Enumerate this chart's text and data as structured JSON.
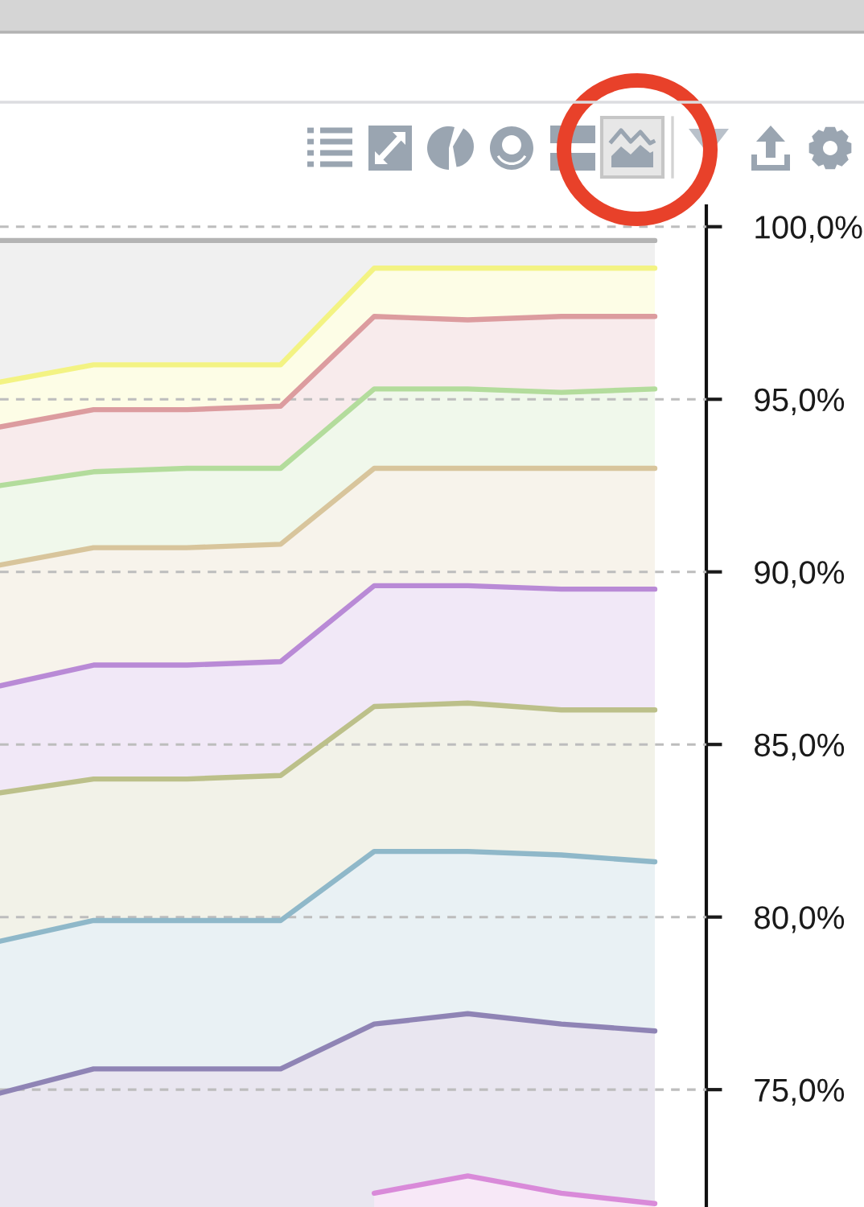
{
  "chart_data": {
    "type": "area",
    "categories": [
      null,
      null,
      null,
      null,
      null,
      null,
      null,
      null
    ],
    "series": [
      {
        "color": "#b4b4b4",
        "values": [
          99.6,
          99.6,
          99.6,
          99.6,
          99.6,
          99.6,
          99.6,
          99.6
        ]
      },
      {
        "color": "#f3f383",
        "values": [
          95.5,
          96.0,
          96.0,
          96.0,
          98.8,
          98.8,
          98.8,
          98.8
        ]
      },
      {
        "color": "#dc9c9f",
        "values": [
          94.2,
          94.7,
          94.7,
          94.8,
          97.4,
          97.3,
          97.4,
          97.4
        ]
      },
      {
        "color": "#b3dc9c",
        "values": [
          92.5,
          92.9,
          93.0,
          93.0,
          95.3,
          95.3,
          95.2,
          95.3
        ]
      },
      {
        "color": "#d8c59c",
        "values": [
          90.2,
          90.7,
          90.7,
          90.8,
          93.0,
          93.0,
          93.0,
          93.0
        ]
      },
      {
        "color": "#b98ad6",
        "values": [
          86.7,
          87.3,
          87.3,
          87.4,
          89.6,
          89.6,
          89.5,
          89.5
        ]
      },
      {
        "color": "#bcc08a",
        "values": [
          83.6,
          84.0,
          84.0,
          84.1,
          86.1,
          86.2,
          86.0,
          86.0
        ]
      },
      {
        "color": "#8fb8c9",
        "values": [
          79.3,
          79.9,
          79.9,
          79.9,
          81.9,
          81.9,
          81.8,
          81.6
        ]
      },
      {
        "color": "#8f84b5",
        "values": [
          74.9,
          75.6,
          75.6,
          75.6,
          76.9,
          77.2,
          76.9,
          76.7
        ]
      },
      {
        "color": "#d98ad9",
        "values": [
          null,
          null,
          null,
          null,
          72.0,
          72.5,
          72.0,
          71.7
        ]
      }
    ],
    "ylim": [
      71.6,
      100.6
    ],
    "yticks": [
      {
        "value": 75,
        "label": "75,0%"
      },
      {
        "value": 80,
        "label": "80,0%"
      },
      {
        "value": 85,
        "label": "85,0%"
      },
      {
        "value": 90,
        "label": "90,0%"
      },
      {
        "value": 95,
        "label": "95,0%"
      },
      {
        "value": 100,
        "label": "100,0%"
      }
    ],
    "grid": "y",
    "tick_labels": "y"
  }
}
